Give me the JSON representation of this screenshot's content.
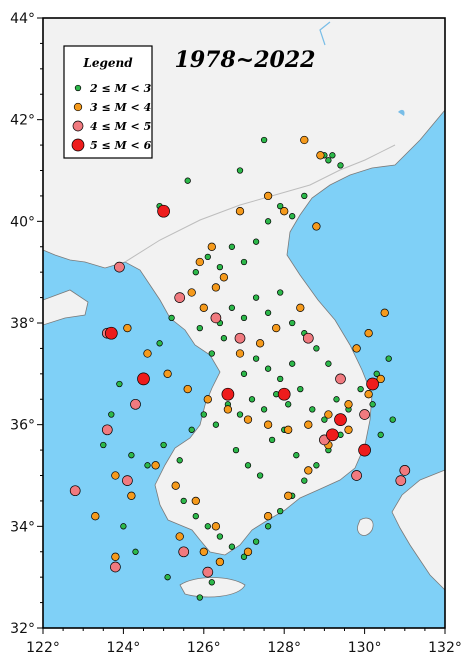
{
  "title": "1978~2022",
  "axes": {
    "x_ticks": [
      "122°",
      "124°",
      "126°",
      "128°",
      "130°",
      "132°"
    ],
    "y_ticks": [
      "32°",
      "34°",
      "36°",
      "38°",
      "40°",
      "42°",
      "44°"
    ],
    "lon_range": [
      122,
      132
    ],
    "lat_range": [
      32,
      44
    ]
  },
  "legend": {
    "title": "Legend",
    "items": [
      {
        "label": "2 ≤ M < 3",
        "color": "#2db84a",
        "size_class": "small"
      },
      {
        "label": "3 ≤ M < 4",
        "color": "#f59a1c",
        "size_class": "medium"
      },
      {
        "label": "4 ≤ M < 5",
        "color": "#f07a7f",
        "size_class": "large"
      },
      {
        "label": "5 ≤ M < 6",
        "color": "#ee1c1c",
        "size_class": "xlarge"
      }
    ]
  },
  "colors": {
    "sea": "#7fd0f7",
    "land": "#f2f2f2",
    "coast": "#7a7a7a",
    "border": "#bdbdbd",
    "river": "#78bde7"
  },
  "chart_data": {
    "type": "scatter",
    "title": "1978~2022",
    "xlabel": "",
    "ylabel": "",
    "xlim": [
      122,
      132
    ],
    "ylim": [
      32,
      44
    ],
    "series": [
      {
        "name": "2 ≤ M < 3",
        "points": [
          [
            124.2,
            35.4
          ],
          [
            124.6,
            35.2
          ],
          [
            125.0,
            35.6
          ],
          [
            125.4,
            35.3
          ],
          [
            125.7,
            35.9
          ],
          [
            126.0,
            36.2
          ],
          [
            126.3,
            36.0
          ],
          [
            126.6,
            36.4
          ],
          [
            126.9,
            36.2
          ],
          [
            127.2,
            36.5
          ],
          [
            127.5,
            36.3
          ],
          [
            127.8,
            36.6
          ],
          [
            128.1,
            36.4
          ],
          [
            128.4,
            36.7
          ],
          [
            128.7,
            36.3
          ],
          [
            129.0,
            36.1
          ],
          [
            129.3,
            36.5
          ],
          [
            129.6,
            36.3
          ],
          [
            129.9,
            36.7
          ],
          [
            130.2,
            36.4
          ],
          [
            126.4,
            38.0
          ],
          [
            126.7,
            38.3
          ],
          [
            127.0,
            38.1
          ],
          [
            127.3,
            38.5
          ],
          [
            127.6,
            38.2
          ],
          [
            127.9,
            38.6
          ],
          [
            128.2,
            38.0
          ],
          [
            128.5,
            37.8
          ],
          [
            128.8,
            37.5
          ],
          [
            129.1,
            37.2
          ],
          [
            125.8,
            39.0
          ],
          [
            126.1,
            39.3
          ],
          [
            126.4,
            39.1
          ],
          [
            126.7,
            39.5
          ],
          [
            127.0,
            39.2
          ],
          [
            127.3,
            39.6
          ],
          [
            127.6,
            40.0
          ],
          [
            127.9,
            40.3
          ],
          [
            128.2,
            40.1
          ],
          [
            128.5,
            40.5
          ],
          [
            125.5,
            34.5
          ],
          [
            125.8,
            34.2
          ],
          [
            126.1,
            34.0
          ],
          [
            126.4,
            33.8
          ],
          [
            126.7,
            33.6
          ],
          [
            127.0,
            33.4
          ],
          [
            127.3,
            33.7
          ],
          [
            127.6,
            34.0
          ],
          [
            127.9,
            34.3
          ],
          [
            128.2,
            34.6
          ],
          [
            128.5,
            34.9
          ],
          [
            128.8,
            35.2
          ],
          [
            129.1,
            35.5
          ],
          [
            129.4,
            35.8
          ],
          [
            126.8,
            35.5
          ],
          [
            127.1,
            35.2
          ],
          [
            127.4,
            35.0
          ],
          [
            127.7,
            35.7
          ],
          [
            128.0,
            35.9
          ],
          [
            128.3,
            35.4
          ],
          [
            127.0,
            37.0
          ],
          [
            127.3,
            37.3
          ],
          [
            127.6,
            37.1
          ],
          [
            127.9,
            36.9
          ],
          [
            128.2,
            37.2
          ],
          [
            126.2,
            37.4
          ],
          [
            126.5,
            37.7
          ],
          [
            125.9,
            37.9
          ],
          [
            125.2,
            38.1
          ],
          [
            124.9,
            37.6
          ],
          [
            129.0,
            41.3
          ],
          [
            129.1,
            41.2
          ],
          [
            129.2,
            41.3
          ],
          [
            129.4,
            41.1
          ],
          [
            127.5,
            41.6
          ],
          [
            126.9,
            41.0
          ],
          [
            125.6,
            40.8
          ],
          [
            124.9,
            40.3
          ],
          [
            130.3,
            37.0
          ],
          [
            130.6,
            37.3
          ],
          [
            130.4,
            35.8
          ],
          [
            130.7,
            36.1
          ],
          [
            123.9,
            36.8
          ],
          [
            123.7,
            36.2
          ],
          [
            123.5,
            35.6
          ],
          [
            124.0,
            34.0
          ],
          [
            124.3,
            33.5
          ],
          [
            125.1,
            33.0
          ],
          [
            125.9,
            32.6
          ],
          [
            126.2,
            32.9
          ]
        ]
      },
      {
        "name": "3 ≤ M < 4",
        "points": [
          [
            124.1,
            37.9
          ],
          [
            124.6,
            37.4
          ],
          [
            125.1,
            37.0
          ],
          [
            125.6,
            36.7
          ],
          [
            126.1,
            36.5
          ],
          [
            126.6,
            36.3
          ],
          [
            127.1,
            36.1
          ],
          [
            127.6,
            36.0
          ],
          [
            128.1,
            35.9
          ],
          [
            128.6,
            36.0
          ],
          [
            129.1,
            36.2
          ],
          [
            129.6,
            36.4
          ],
          [
            130.1,
            36.6
          ],
          [
            130.4,
            36.9
          ],
          [
            125.9,
            39.2
          ],
          [
            126.2,
            39.5
          ],
          [
            126.5,
            38.9
          ],
          [
            125.7,
            38.6
          ],
          [
            126.0,
            38.3
          ],
          [
            126.3,
            38.7
          ],
          [
            127.6,
            40.5
          ],
          [
            128.0,
            40.2
          ],
          [
            128.8,
            39.9
          ],
          [
            126.9,
            40.2
          ],
          [
            128.5,
            41.6
          ],
          [
            124.8,
            35.2
          ],
          [
            125.3,
            34.8
          ],
          [
            125.8,
            34.5
          ],
          [
            126.3,
            34.0
          ],
          [
            126.0,
            33.5
          ],
          [
            126.4,
            33.3
          ],
          [
            127.1,
            33.5
          ],
          [
            127.6,
            34.2
          ],
          [
            128.1,
            34.6
          ],
          [
            128.6,
            35.1
          ],
          [
            129.1,
            35.6
          ],
          [
            129.6,
            35.9
          ],
          [
            124.2,
            34.6
          ],
          [
            123.8,
            35.0
          ],
          [
            123.3,
            34.2
          ],
          [
            123.8,
            33.4
          ],
          [
            125.4,
            33.8
          ],
          [
            126.9,
            37.4
          ],
          [
            127.4,
            37.6
          ],
          [
            127.8,
            37.9
          ],
          [
            128.4,
            38.3
          ],
          [
            129.8,
            37.5
          ],
          [
            130.1,
            37.8
          ],
          [
            130.5,
            38.2
          ],
          [
            128.9,
            41.3
          ]
        ]
      },
      {
        "name": "4 ≤ M < 5",
        "points": [
          [
            123.6,
            37.8
          ],
          [
            125.4,
            38.5
          ],
          [
            126.9,
            37.7
          ],
          [
            128.6,
            37.7
          ],
          [
            129.4,
            36.9
          ],
          [
            130.0,
            36.2
          ],
          [
            129.8,
            35.0
          ],
          [
            130.9,
            34.9
          ],
          [
            131.0,
            35.1
          ],
          [
            122.8,
            34.7
          ],
          [
            123.6,
            35.9
          ],
          [
            124.1,
            34.9
          ],
          [
            123.8,
            33.2
          ],
          [
            126.1,
            33.1
          ],
          [
            125.5,
            33.5
          ],
          [
            124.3,
            36.4
          ],
          [
            126.3,
            38.1
          ],
          [
            129.0,
            35.7
          ],
          [
            123.9,
            39.1
          ]
        ]
      },
      {
        "name": "5 ≤ M < 6",
        "points": [
          [
            123.7,
            37.8
          ],
          [
            124.5,
            36.9
          ],
          [
            125.0,
            40.2
          ],
          [
            126.6,
            36.6
          ],
          [
            128.0,
            36.6
          ],
          [
            129.2,
            35.8
          ],
          [
            129.4,
            36.1
          ],
          [
            130.0,
            35.5
          ],
          [
            130.2,
            36.8
          ]
        ]
      }
    ]
  }
}
